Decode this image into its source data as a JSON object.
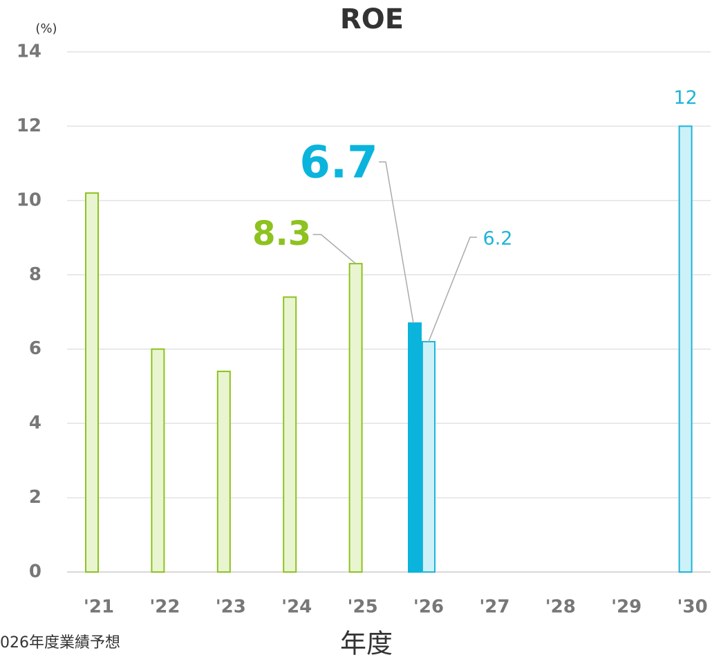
{
  "chart_data": {
    "type": "bar",
    "title": "ROE",
    "y_axis_label": "(%)",
    "x_axis_label": "年度",
    "footnote": "026年度業績予想",
    "categories": [
      "'21",
      "'22",
      "'23",
      "'24",
      "'25",
      "'26",
      "'27",
      "'28",
      "'29",
      "'30"
    ],
    "series": [
      {
        "color": "#8dc21f",
        "fill": "#e8f5d0",
        "values": [
          10.2,
          6.0,
          5.4,
          7.4,
          8.3,
          null,
          null,
          null,
          null,
          null
        ],
        "value_labels": [
          null,
          null,
          null,
          null,
          "8.3",
          null,
          null,
          null,
          null,
          null
        ]
      },
      {
        "color": "#0ab4dc",
        "fill": "#0ab4dc",
        "values": [
          null,
          null,
          null,
          null,
          null,
          6.7,
          null,
          null,
          null,
          null
        ],
        "value_labels": [
          null,
          null,
          null,
          null,
          null,
          "6.7",
          null,
          null,
          null,
          null
        ]
      },
      {
        "color": "#1fb4d8",
        "fill": "#cdf1f8",
        "values": [
          null,
          null,
          null,
          null,
          null,
          6.2,
          null,
          null,
          null,
          12
        ],
        "value_labels": [
          null,
          null,
          null,
          null,
          null,
          "6.2",
          null,
          null,
          null,
          "12"
        ]
      }
    ],
    "ylim": [
      0,
      14
    ],
    "yticks": [
      0,
      2,
      4,
      6,
      8,
      10,
      12,
      14
    ],
    "grid": true
  }
}
